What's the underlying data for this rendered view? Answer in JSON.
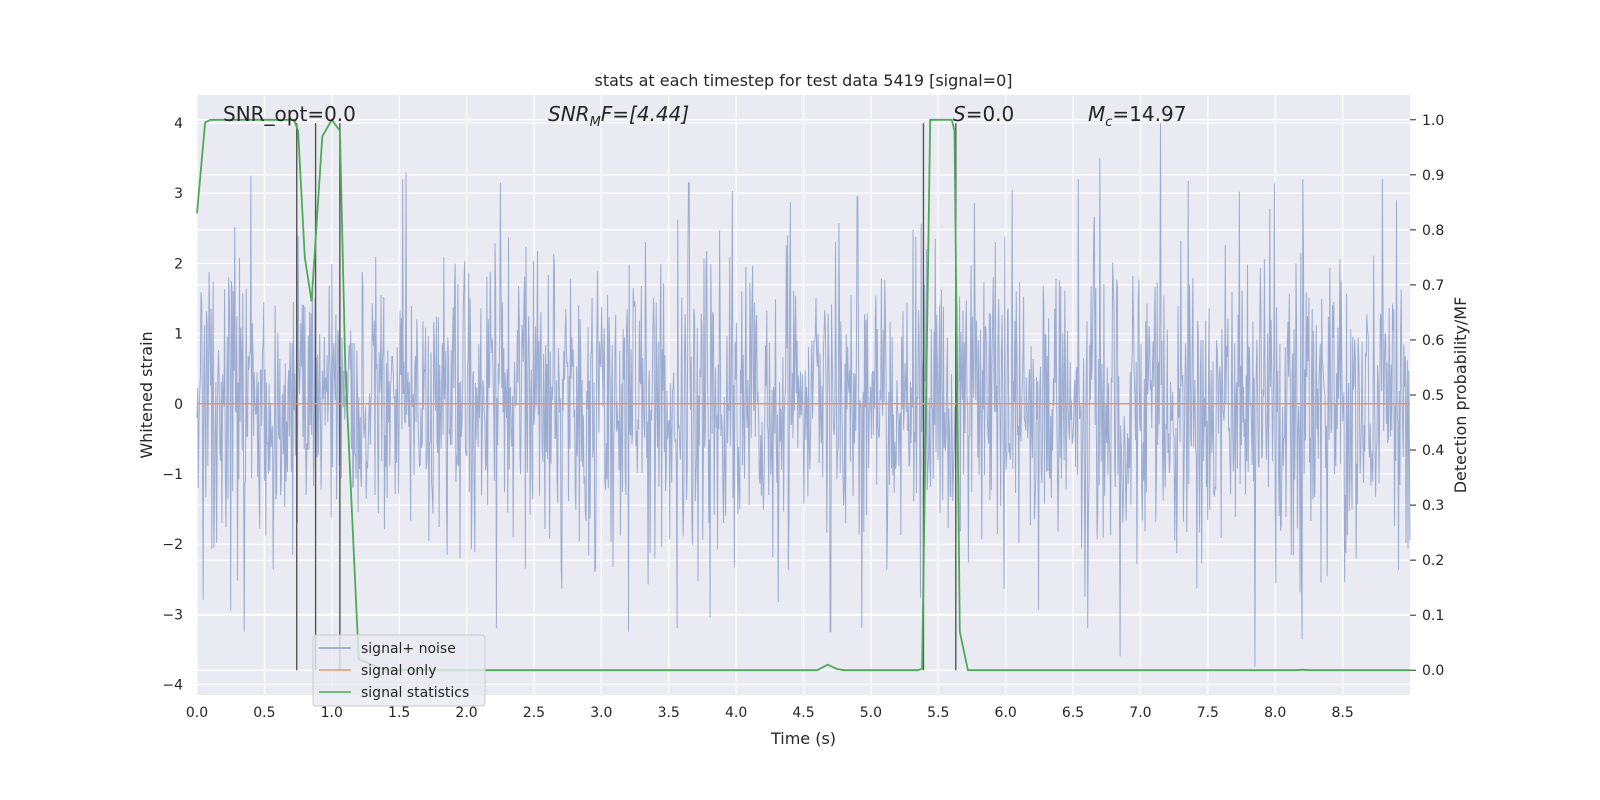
{
  "chart_data": {
    "type": "line",
    "title": "stats at each timestep for test data 5419 [signal=0]",
    "xlabel": "Time (s)",
    "ylabel": "Whitened strain",
    "ylabel_right": "Detection probability/MF",
    "xlim": [
      0,
      9
    ],
    "ylim": [
      -4.15,
      4.4
    ],
    "ylim_right": [
      -0.045,
      1.045
    ],
    "xticks": [
      "0.0",
      "0.5",
      "1.0",
      "1.5",
      "2.0",
      "2.5",
      "3.0",
      "3.5",
      "4.0",
      "4.5",
      "5.0",
      "5.5",
      "6.0",
      "6.5",
      "7.0",
      "7.5",
      "8.0",
      "8.5"
    ],
    "yticks": [
      "−4",
      "−3",
      "−2",
      "−1",
      "0",
      "1",
      "2",
      "3",
      "4"
    ],
    "yticks_right": [
      "0.0",
      "0.1",
      "0.2",
      "0.3",
      "0.4",
      "0.5",
      "0.6",
      "0.7",
      "0.8",
      "0.9",
      "1.0"
    ],
    "grid": true,
    "legend_position": "lower-left",
    "annotations": {
      "snr_opt": "SNR_opt=0.0",
      "snr_mf_base": "SNR",
      "snr_mf_sub": "M",
      "snr_mf_rest": "F=[4.44]",
      "s_label": "S",
      "s_value": "=0.0",
      "mc_base": "M",
      "mc_sub": "c",
      "mc_value": "=14.97"
    },
    "series": [
      {
        "name": "signal+ noise",
        "color": "#8da0cb",
        "axis": "left",
        "description_values": "whitened noise, bulk within about ±1.5, peaks up to about ±4",
        "envelope_peaks": [
          {
            "x": 0.4,
            "y": 3.25
          },
          {
            "x": 1.55,
            "y": 3.3
          },
          {
            "x": 2.25,
            "y": 3.15
          },
          {
            "x": 3.65,
            "y": 3.15
          },
          {
            "x": 4.9,
            "y": 2.95
          },
          {
            "x": 6.05,
            "y": 3.05
          },
          {
            "x": 6.7,
            "y": 3.5
          },
          {
            "x": 7.15,
            "y": 4.0
          },
          {
            "x": 8.2,
            "y": 3.55
          },
          {
            "x": 8.9,
            "y": 2.9
          }
        ],
        "envelope_troughs": [
          {
            "x": 0.35,
            "y": -3.25
          },
          {
            "x": 3.2,
            "y": -3.25
          },
          {
            "x": 4.7,
            "y": -3.25
          },
          {
            "x": 6.85,
            "y": -3.6
          },
          {
            "x": 7.85,
            "y": -3.75
          },
          {
            "x": 8.2,
            "y": -3.35
          }
        ]
      },
      {
        "name": "signal only",
        "color": "#e5967a",
        "axis": "left",
        "x": [
          0,
          9
        ],
        "y": [
          0,
          0
        ]
      },
      {
        "name": "signal statistics",
        "color": "#4daa57",
        "axis": "right",
        "x": [
          0,
          0.06,
          0.1,
          0.72,
          0.75,
          0.8,
          0.85,
          0.93,
          1.0,
          1.06,
          1.1,
          1.2,
          1.4,
          4.6,
          4.68,
          4.75,
          4.8,
          5.35,
          5.38,
          5.44,
          5.5,
          5.6,
          5.62,
          5.66,
          5.72,
          5.78,
          8.15,
          8.2,
          8.25,
          9.0
        ],
        "y": [
          0.83,
          0.995,
          1.0,
          1.0,
          0.98,
          0.75,
          0.67,
          0.97,
          1.0,
          0.98,
          0.55,
          0.02,
          0.0,
          0.0,
          0.01,
          0.002,
          0.0,
          0.0,
          0.003,
          1.0,
          1.0,
          1.0,
          0.98,
          0.07,
          0.0,
          0.0,
          0.0,
          0.001,
          0.0,
          0.0
        ]
      }
    ],
    "vertical_markers": {
      "color": "#555555",
      "x": [
        0.74,
        0.88,
        1.06,
        5.39,
        5.63
      ],
      "y_top": 4.0,
      "y_bottom_right_axis": 0.0
    }
  }
}
